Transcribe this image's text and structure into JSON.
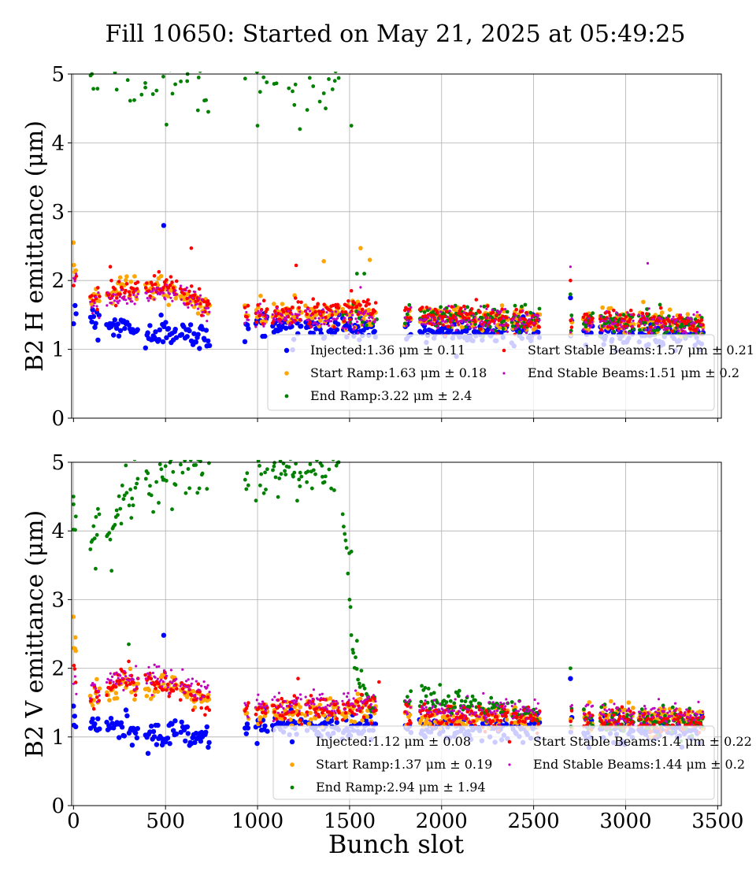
{
  "figure": {
    "title": "Fill 10650: Started on May 21, 2025 at 05:49:25",
    "xlabel": "Bunch slot"
  },
  "colors": {
    "injected": "#0000ff",
    "start_ramp": "#ffa500",
    "end_ramp": "#008000",
    "start_stable": "#ff0000",
    "end_stable": "#bf00bf",
    "grid": "#b0b0b0",
    "legend_border": "#cccccc"
  },
  "chart_data": [
    {
      "type": "scatter",
      "ylabel": "B2 H emittance (μm)",
      "xlim": [
        -10,
        3520
      ],
      "ylim": [
        0,
        5
      ],
      "xticks": [
        0,
        500,
        1000,
        1500,
        2000,
        2500,
        3000,
        3500
      ],
      "xtick_labels_shown": false,
      "yticks": [
        0,
        1,
        2,
        3,
        4,
        5
      ],
      "grid": true,
      "legend_position": "lower-right",
      "trains": [
        [
          0,
          15
        ],
        [
          90,
          140
        ],
        [
          180,
          290
        ],
        [
          300,
          350
        ],
        [
          390,
          560
        ],
        [
          580,
          740
        ],
        [
          930,
          950
        ],
        [
          990,
          1050
        ],
        [
          1080,
          1240
        ],
        [
          1260,
          1440
        ],
        [
          1460,
          1640
        ],
        [
          1800,
          1830
        ],
        [
          1880,
          2190
        ],
        [
          2200,
          2360
        ],
        [
          2380,
          2530
        ],
        [
          2700,
          2710
        ],
        [
          2770,
          2820
        ],
        [
          2860,
          3040
        ],
        [
          3070,
          3240
        ],
        [
          3250,
          3420
        ]
      ],
      "series": [
        {
          "key": "injected",
          "legend": "Injected:1.36 μm ± 0.11",
          "mean": 1.36,
          "std": 0.11,
          "profile": [
            [
              0,
              1.62
            ],
            [
              140,
              1.4
            ],
            [
              300,
              1.32
            ],
            [
              350,
              1.2
            ],
            [
              560,
              1.25
            ],
            [
              740,
              1.16
            ],
            [
              1000,
              1.38
            ],
            [
              1640,
              1.3
            ],
            [
              3420,
              1.2
            ]
          ],
          "outliers": [
            [
              490,
              2.8
            ],
            [
              2700,
              1.75
            ]
          ]
        },
        {
          "key": "start_ramp",
          "legend": "Start Ramp:1.63 μm ± 0.18",
          "mean": 1.63,
          "std": 0.18,
          "profile": [
            [
              0,
              2.15
            ],
            [
              100,
              1.72
            ],
            [
              290,
              1.92
            ],
            [
              560,
              1.82
            ],
            [
              740,
              1.55
            ],
            [
              1000,
              1.55
            ],
            [
              1640,
              1.5
            ],
            [
              2000,
              1.48
            ],
            [
              3420,
              1.38
            ]
          ],
          "outliers": [
            [
              0,
              2.55
            ],
            [
              1360,
              2.28
            ],
            [
              1560,
              2.47
            ],
            [
              1610,
              2.3
            ]
          ]
        },
        {
          "key": "end_ramp",
          "legend": "End Ramp:3.22 μm ± 2.4",
          "mean": 3.22,
          "std": 2.4,
          "profile": [
            [
              1640,
              1.45
            ],
            [
              1880,
              1.48
            ],
            [
              3420,
              1.35
            ]
          ],
          "outliers": [
            [
              100,
              5.0
            ],
            [
              330,
              4.62
            ],
            [
              370,
              4.7
            ],
            [
              390,
              4.87
            ],
            [
              620,
              5.0
            ],
            [
              680,
              4.95
            ],
            [
              720,
              4.62
            ],
            [
              1000,
              4.25
            ],
            [
              1050,
              4.88
            ],
            [
              1190,
              4.75
            ],
            [
              1200,
              4.55
            ],
            [
              1230,
              4.2
            ],
            [
              1360,
              4.72
            ],
            [
              1370,
              4.5
            ],
            [
              1420,
              4.9
            ],
            [
              1510,
              4.25
            ],
            [
              1540,
              2.1
            ],
            [
              1580,
              2.1
            ],
            [
              2700,
              1.8
            ]
          ]
        },
        {
          "key": "start_stable",
          "legend": "Start Stable Beams:1.57 μm ± 0.21",
          "mean": 1.57,
          "std": 0.21,
          "profile": [
            [
              0,
              2.1
            ],
            [
              100,
              1.7
            ],
            [
              290,
              1.88
            ],
            [
              560,
              1.95
            ],
            [
              740,
              1.62
            ],
            [
              1000,
              1.52
            ],
            [
              1640,
              1.6
            ],
            [
              2000,
              1.45
            ],
            [
              3420,
              1.4
            ]
          ],
          "outliers": [
            [
              200,
              2.2
            ],
            [
              640,
              2.47
            ],
            [
              1210,
              2.22
            ],
            [
              1510,
              1.85
            ],
            [
              2700,
              2.0
            ]
          ]
        },
        {
          "key": "end_stable",
          "legend": "End Stable Beams:1.51 μm ± 0.2",
          "mean": 1.51,
          "std": 0.2,
          "profile": [
            [
              0,
              2.05
            ],
            [
              100,
              1.65
            ],
            [
              290,
              1.75
            ],
            [
              560,
              1.85
            ],
            [
              740,
              1.55
            ],
            [
              1000,
              1.45
            ],
            [
              1640,
              1.45
            ],
            [
              2000,
              1.42
            ],
            [
              3420,
              1.35
            ]
          ],
          "outliers": [
            [
              2700,
              2.2
            ],
            [
              3120,
              2.25
            ],
            [
              1560,
              1.9
            ]
          ]
        }
      ]
    },
    {
      "type": "scatter",
      "ylabel": "B2 V emittance (μm)",
      "xlim": [
        -10,
        3520
      ],
      "ylim": [
        0,
        5
      ],
      "xticks": [
        0,
        500,
        1000,
        1500,
        2000,
        2500,
        3000,
        3500
      ],
      "xtick_labels_shown": true,
      "yticks": [
        0,
        1,
        2,
        3,
        4,
        5
      ],
      "grid": true,
      "legend_position": "lower-right",
      "trains": [
        [
          0,
          15
        ],
        [
          90,
          140
        ],
        [
          180,
          290
        ],
        [
          300,
          350
        ],
        [
          390,
          560
        ],
        [
          580,
          740
        ],
        [
          930,
          950
        ],
        [
          990,
          1050
        ],
        [
          1080,
          1240
        ],
        [
          1260,
          1440
        ],
        [
          1460,
          1640
        ],
        [
          1800,
          1830
        ],
        [
          1880,
          2190
        ],
        [
          2200,
          2360
        ],
        [
          2380,
          2530
        ],
        [
          2700,
          2710
        ],
        [
          2770,
          2820
        ],
        [
          2860,
          3040
        ],
        [
          3070,
          3240
        ],
        [
          3250,
          3420
        ]
      ],
      "series": [
        {
          "key": "injected",
          "legend": "Injected:1.12 μm ± 0.08",
          "mean": 1.12,
          "std": 0.08,
          "profile": [
            [
              0,
              1.2
            ],
            [
              140,
              1.15
            ],
            [
              290,
              1.15
            ],
            [
              350,
              1.0
            ],
            [
              560,
              1.1
            ],
            [
              740,
              0.98
            ],
            [
              1000,
              1.18
            ],
            [
              1640,
              1.15
            ],
            [
              3420,
              1.1
            ]
          ],
          "outliers": [
            [
              490,
              2.48
            ],
            [
              0,
              1.45
            ],
            [
              2700,
              1.85
            ]
          ]
        },
        {
          "key": "start_ramp",
          "legend": "Start Ramp:1.37 μm ± 0.19",
          "mean": 1.37,
          "std": 0.19,
          "profile": [
            [
              0,
              2.3
            ],
            [
              100,
              1.55
            ],
            [
              290,
              1.78
            ],
            [
              560,
              1.75
            ],
            [
              740,
              1.5
            ],
            [
              1000,
              1.35
            ],
            [
              1640,
              1.4
            ],
            [
              2000,
              1.3
            ],
            [
              3420,
              1.28
            ]
          ],
          "outliers": [
            [
              0,
              2.75
            ],
            [
              10,
              2.45
            ],
            [
              2920,
              1.52
            ]
          ]
        },
        {
          "key": "end_ramp",
          "legend": "End Ramp:2.94 μm ± 1.94",
          "mean": 2.94,
          "std": 1.94,
          "profile": [
            [
              0,
              4.2
            ],
            [
              100,
              3.8
            ],
            [
              140,
              4.3
            ],
            [
              180,
              3.8
            ],
            [
              290,
              4.6
            ],
            [
              560,
              5.0
            ],
            [
              740,
              4.9
            ],
            [
              1000,
              4.75
            ],
            [
              1240,
              5.0
            ],
            [
              1420,
              5.0
            ],
            [
              1500,
              3.5
            ],
            [
              1510,
              2.3
            ],
            [
              1560,
              1.65
            ],
            [
              1640,
              1.45
            ],
            [
              1880,
              1.55
            ],
            [
              2530,
              1.3
            ],
            [
              3420,
              1.2
            ]
          ],
          "outliers": [
            [
              0,
              4.5
            ],
            [
              0,
              4.02
            ],
            [
              120,
              3.45
            ],
            [
              300,
              2.35
            ],
            [
              610,
              4.55
            ],
            [
              1200,
              4.85
            ],
            [
              1230,
              4.65
            ],
            [
              1350,
              4.95
            ],
            [
              1510,
              3.7
            ],
            [
              1500,
              3.0
            ],
            [
              1540,
              2.4
            ],
            [
              2700,
              2.0
            ]
          ]
        },
        {
          "key": "start_stable",
          "legend": "Start Stable Beams:1.4 μm ± 0.22",
          "mean": 1.4,
          "std": 0.22,
          "profile": [
            [
              0,
              2.0
            ],
            [
              100,
              1.6
            ],
            [
              290,
              1.85
            ],
            [
              560,
              1.72
            ],
            [
              740,
              1.52
            ],
            [
              1000,
              1.38
            ],
            [
              1640,
              1.45
            ],
            [
              2000,
              1.3
            ],
            [
              3420,
              1.2
            ]
          ],
          "outliers": [
            [
              300,
              2.1
            ],
            [
              1220,
              1.85
            ],
            [
              1660,
              1.8
            ]
          ]
        },
        {
          "key": "end_stable",
          "legend": "End Stable Beams:1.44 μm ± 0.2",
          "mean": 1.44,
          "std": 0.2,
          "profile": [
            [
              0,
              1.95
            ],
            [
              100,
              1.65
            ],
            [
              290,
              1.9
            ],
            [
              560,
              1.8
            ],
            [
              740,
              1.6
            ],
            [
              1000,
              1.45
            ],
            [
              1640,
              1.5
            ],
            [
              2000,
              1.38
            ],
            [
              3420,
              1.3
            ]
          ],
          "outliers": [
            [
              440,
              2.05
            ],
            [
              3180,
              1.55
            ]
          ]
        }
      ]
    }
  ]
}
